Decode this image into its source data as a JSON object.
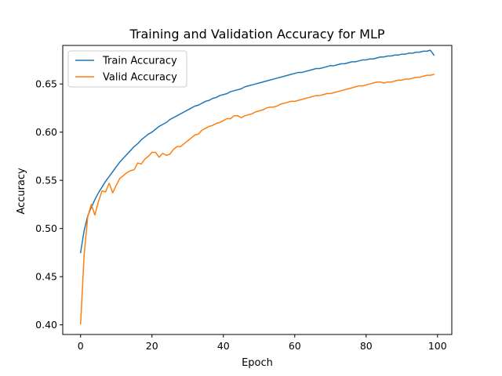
{
  "chart_data": {
    "type": "line",
    "title": "Training and Validation Accuracy for MLP",
    "xlabel": "Epoch",
    "ylabel": "Accuracy",
    "xlim": [
      -5,
      104
    ],
    "ylim": [
      0.39,
      0.69
    ],
    "xticks": [
      0,
      20,
      40,
      60,
      80,
      100
    ],
    "yticks": [
      0.4,
      0.45,
      0.5,
      0.55,
      0.6,
      0.65
    ],
    "xtick_labels": [
      "0",
      "20",
      "40",
      "60",
      "80",
      "100"
    ],
    "ytick_labels": [
      "0.40",
      "0.45",
      "0.50",
      "0.55",
      "0.60",
      "0.65"
    ],
    "grid": false,
    "legend_position": "upper-left",
    "series": [
      {
        "name": "Train Accuracy",
        "color": "#1f77b4",
        "x": [
          0,
          1,
          2,
          3,
          4,
          5,
          6,
          7,
          8,
          9,
          10,
          11,
          12,
          13,
          14,
          15,
          16,
          17,
          18,
          19,
          20,
          21,
          22,
          23,
          24,
          25,
          26,
          27,
          28,
          29,
          30,
          31,
          32,
          33,
          34,
          35,
          36,
          37,
          38,
          39,
          40,
          41,
          42,
          43,
          44,
          45,
          46,
          47,
          48,
          49,
          50,
          51,
          52,
          53,
          54,
          55,
          56,
          57,
          58,
          59,
          60,
          61,
          62,
          63,
          64,
          65,
          66,
          67,
          68,
          69,
          70,
          71,
          72,
          73,
          74,
          75,
          76,
          77,
          78,
          79,
          80,
          81,
          82,
          83,
          84,
          85,
          86,
          87,
          88,
          89,
          90,
          91,
          92,
          93,
          94,
          95,
          96,
          97,
          98,
          99
        ],
        "values": [
          0.475,
          0.498,
          0.513,
          0.522,
          0.53,
          0.537,
          0.543,
          0.549,
          0.554,
          0.559,
          0.564,
          0.569,
          0.573,
          0.577,
          0.581,
          0.585,
          0.588,
          0.592,
          0.595,
          0.598,
          0.6,
          0.603,
          0.606,
          0.608,
          0.61,
          0.613,
          0.615,
          0.617,
          0.619,
          0.621,
          0.623,
          0.625,
          0.627,
          0.628,
          0.63,
          0.632,
          0.633,
          0.635,
          0.636,
          0.638,
          0.639,
          0.64,
          0.642,
          0.643,
          0.644,
          0.645,
          0.647,
          0.648,
          0.649,
          0.65,
          0.651,
          0.652,
          0.653,
          0.654,
          0.655,
          0.656,
          0.657,
          0.658,
          0.659,
          0.66,
          0.661,
          0.662,
          0.662,
          0.663,
          0.664,
          0.665,
          0.666,
          0.666,
          0.667,
          0.668,
          0.669,
          0.669,
          0.67,
          0.671,
          0.671,
          0.672,
          0.673,
          0.673,
          0.674,
          0.675,
          0.675,
          0.676,
          0.676,
          0.677,
          0.678,
          0.678,
          0.679,
          0.679,
          0.68,
          0.68,
          0.681,
          0.681,
          0.682,
          0.682,
          0.683,
          0.683,
          0.684,
          0.684,
          0.685,
          0.68
        ]
      },
      {
        "name": "Valid Accuracy",
        "color": "#ff7f0e",
        "x": [
          0,
          1,
          2,
          3,
          4,
          5,
          6,
          7,
          8,
          9,
          10,
          11,
          12,
          13,
          14,
          15,
          16,
          17,
          18,
          19,
          20,
          21,
          22,
          23,
          24,
          25,
          26,
          27,
          28,
          29,
          30,
          31,
          32,
          33,
          34,
          35,
          36,
          37,
          38,
          39,
          40,
          41,
          42,
          43,
          44,
          45,
          46,
          47,
          48,
          49,
          50,
          51,
          52,
          53,
          54,
          55,
          56,
          57,
          58,
          59,
          60,
          61,
          62,
          63,
          64,
          65,
          66,
          67,
          68,
          69,
          70,
          71,
          72,
          73,
          74,
          75,
          76,
          77,
          78,
          79,
          80,
          81,
          82,
          83,
          84,
          85,
          86,
          87,
          88,
          89,
          90,
          91,
          92,
          93,
          94,
          95,
          96,
          97,
          98,
          99
        ],
        "values": [
          0.401,
          0.473,
          0.512,
          0.525,
          0.514,
          0.528,
          0.539,
          0.538,
          0.547,
          0.537,
          0.545,
          0.552,
          0.555,
          0.558,
          0.56,
          0.561,
          0.568,
          0.567,
          0.572,
          0.575,
          0.579,
          0.579,
          0.574,
          0.578,
          0.576,
          0.577,
          0.582,
          0.585,
          0.585,
          0.588,
          0.591,
          0.594,
          0.597,
          0.598,
          0.602,
          0.604,
          0.606,
          0.607,
          0.609,
          0.61,
          0.612,
          0.614,
          0.614,
          0.617,
          0.617,
          0.615,
          0.617,
          0.618,
          0.619,
          0.621,
          0.622,
          0.623,
          0.625,
          0.626,
          0.626,
          0.627,
          0.629,
          0.63,
          0.631,
          0.632,
          0.632,
          0.633,
          0.634,
          0.635,
          0.636,
          0.637,
          0.638,
          0.638,
          0.639,
          0.64,
          0.64,
          0.641,
          0.642,
          0.643,
          0.644,
          0.645,
          0.646,
          0.647,
          0.648,
          0.648,
          0.649,
          0.65,
          0.651,
          0.652,
          0.652,
          0.651,
          0.652,
          0.652,
          0.653,
          0.654,
          0.654,
          0.655,
          0.655,
          0.656,
          0.657,
          0.657,
          0.658,
          0.659,
          0.659,
          0.66
        ]
      }
    ]
  }
}
